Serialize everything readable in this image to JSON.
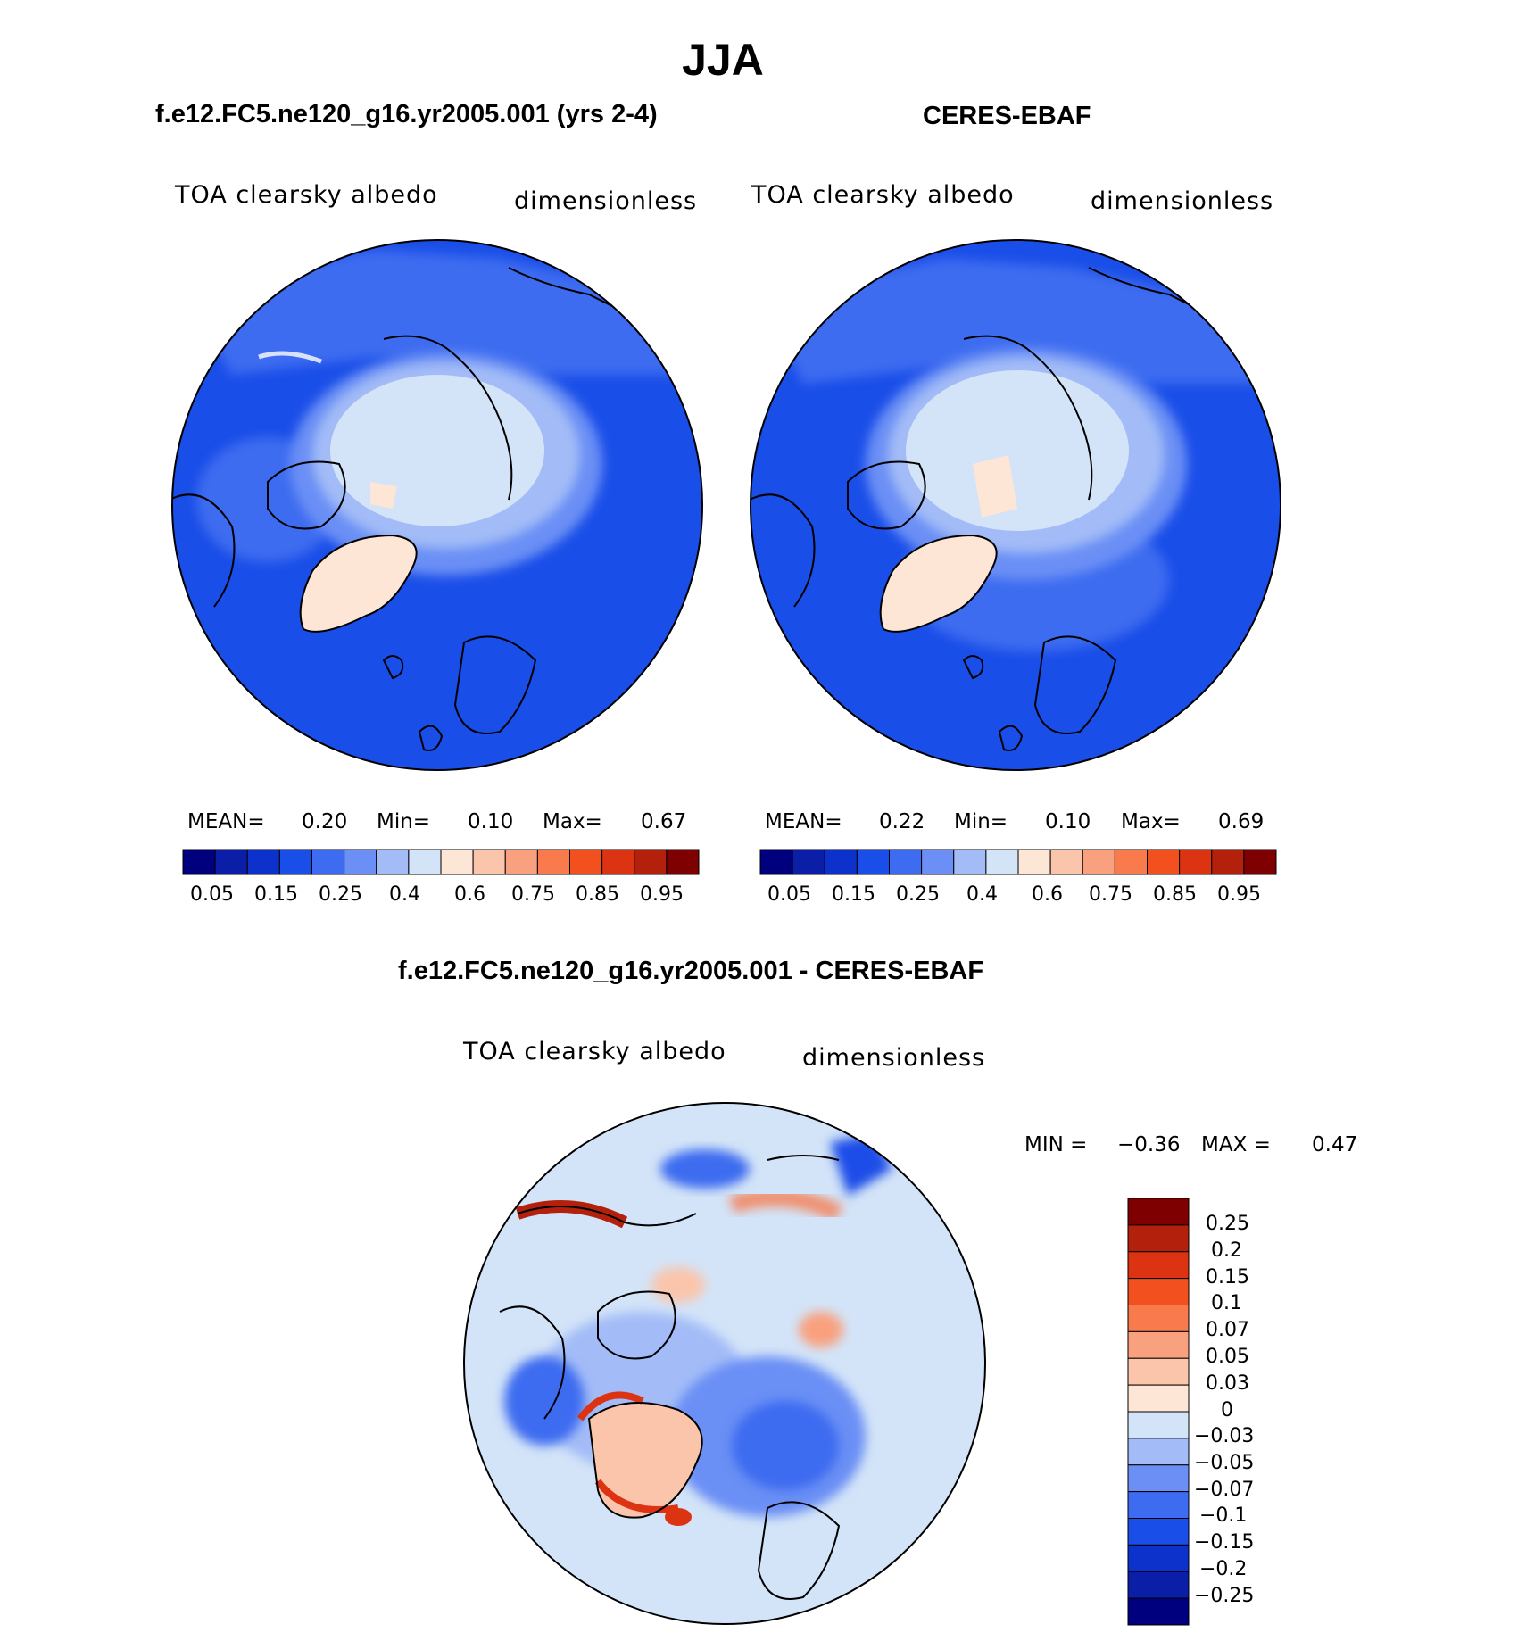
{
  "title": "JJA",
  "panels": [
    {
      "name": "model",
      "case_title": "f.e12.FC5.ne120_g16.yr2005.001 (yrs 2-4)",
      "variable": "TOA clearsky albedo",
      "units": "dimensionless",
      "stats": {
        "mean_label": "MEAN=",
        "mean_value": "0.20",
        "min_label": "Min=",
        "min_value": "0.10",
        "max_label": "Max=",
        "max_value": "0.67"
      }
    },
    {
      "name": "obs",
      "case_title": "CERES-EBAF",
      "variable": "TOA clearsky albedo",
      "units": "dimensionless",
      "stats": {
        "mean_label": "MEAN=",
        "mean_value": "0.22",
        "min_label": "Min=",
        "min_value": "0.10",
        "max_label": "Max=",
        "max_value": "0.69"
      }
    }
  ],
  "abs_colorbar": {
    "tick_labels": [
      "0.05",
      "0.15",
      "0.25",
      "0.4",
      "0.6",
      "0.75",
      "0.85",
      "0.95"
    ],
    "colors": [
      "#00007f",
      "#0a1ea8",
      "#0d32cc",
      "#1a4ee8",
      "#3d6cf0",
      "#6b8ff5",
      "#a3bcf7",
      "#d3e4f8",
      "#fde6d6",
      "#fbc5ab",
      "#f9a07e",
      "#f87a4d",
      "#f3501f",
      "#dc3412",
      "#b3200b",
      "#7f0000"
    ]
  },
  "diff_panel": {
    "title": "f.e12.FC5.ne120_g16.yr2005.001 - CERES-EBAF",
    "variable": "TOA clearsky albedo",
    "units": "dimensionless",
    "stats": {
      "min_label": "MIN =",
      "min_value": "−0.36",
      "max_label": "MAX =",
      "max_value": "0.47"
    },
    "colorbar": {
      "labels": [
        "0.25",
        "0.2",
        "0.15",
        "0.1",
        "0.07",
        "0.05",
        "0.03",
        "0",
        "−0.03",
        "−0.05",
        "−0.07",
        "−0.1",
        "−0.15",
        "−0.2",
        "−0.25"
      ],
      "colors": [
        "#7f0000",
        "#b3200b",
        "#dc3412",
        "#f3501f",
        "#f87a4d",
        "#f9a07e",
        "#fbc5ab",
        "#fde6d6",
        "#d3e4f8",
        "#a3bcf7",
        "#6b8ff5",
        "#3d6cf0",
        "#1a4ee8",
        "#0d32cc",
        "#0a1ea8",
        "#00007f"
      ]
    }
  }
}
